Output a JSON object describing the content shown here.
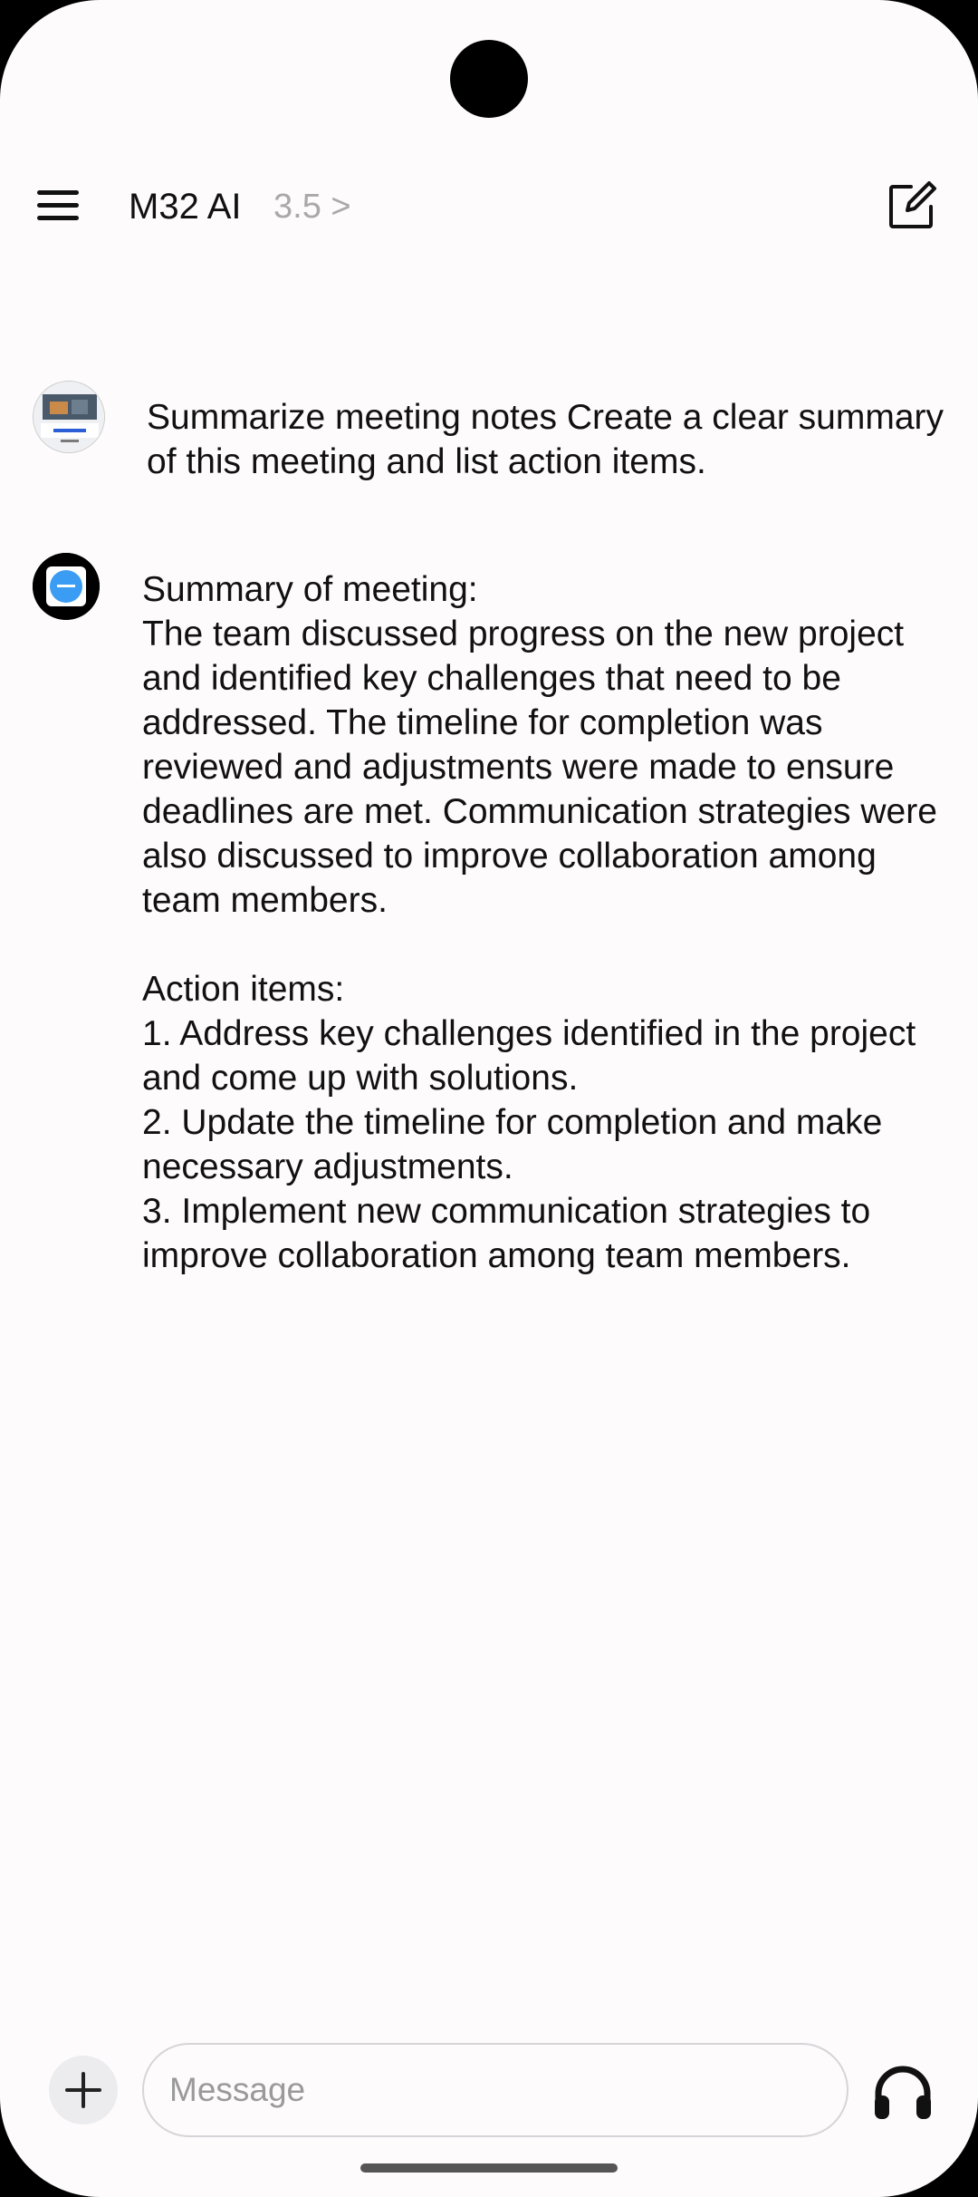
{
  "header": {
    "title": "M32 AI",
    "model_version": "3.5 >"
  },
  "conversation": {
    "user_message": "Summarize meeting notes Create a clear summary of this meeting and list action items.",
    "bot_message": "Summary of meeting:\nThe team discussed progress on the new project and identified key challenges that need to be addressed. The timeline for completion was reviewed and adjustments were made to ensure deadlines are met. Communication strategies were also discussed to improve collaboration among team members.\n\nAction items:\n1. Address key challenges identified in the project and come up with solutions.\n2. Update the timeline for completion and make necessary adjustments.\n3. Implement new communication strategies to improve collaboration among team members."
  },
  "composer": {
    "placeholder": "Message"
  },
  "icons": {
    "menu": "hamburger-menu-icon",
    "new_chat": "edit-square-icon",
    "add": "plus-icon",
    "voice": "headphones-icon"
  },
  "colors": {
    "background": "#fdfbfc",
    "bot_avatar_accent": "#3b9cf3",
    "muted_text": "#a9a9a9"
  }
}
